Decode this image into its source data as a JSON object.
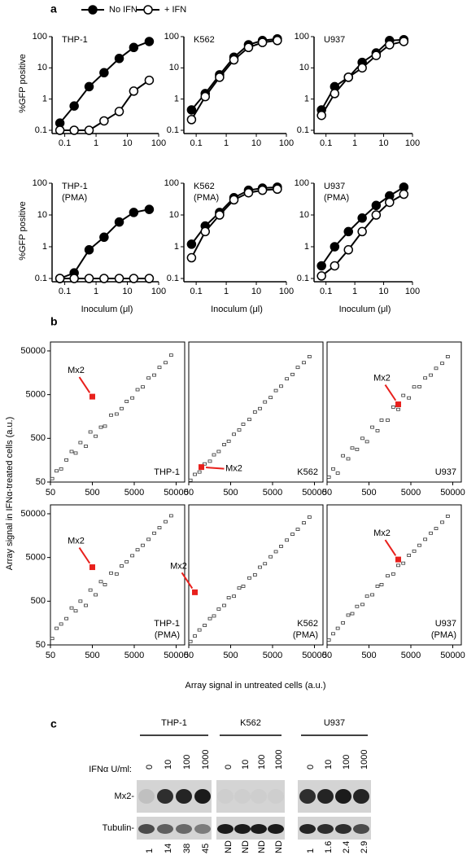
{
  "panel_labels": [
    "a",
    "b",
    "c"
  ],
  "chart_data": [
    {
      "type": "line",
      "title": [
        "THP-1"
      ],
      "ylabel": "%GFP positive",
      "log": true,
      "x": [
        0.07,
        0.2,
        0.6,
        1.8,
        5.5,
        16,
        50
      ],
      "xlim": [
        0.05,
        100
      ],
      "xticks": [
        0.1,
        1,
        10,
        100
      ],
      "ylim": [
        0.1,
        100
      ],
      "yticks": [
        0.1,
        1,
        10,
        100
      ],
      "series": [
        {
          "name": "No IFN",
          "color": "#000000",
          "values": [
            0.17,
            0.6,
            2.5,
            7,
            20,
            45,
            70
          ]
        },
        {
          "name": "+ IFN",
          "color": "#ffffff",
          "values": [
            0.1,
            0.1,
            0.1,
            0.2,
            0.4,
            1.8,
            4
          ]
        }
      ]
    },
    {
      "type": "line",
      "title": [
        "K562"
      ],
      "log": true,
      "x": [
        0.07,
        0.2,
        0.6,
        1.8,
        5.5,
        16,
        50
      ],
      "xlim": [
        0.05,
        100
      ],
      "xticks": [
        0.1,
        1,
        10,
        100
      ],
      "ylim": [
        0.1,
        100
      ],
      "yticks": [
        0.1,
        1,
        10,
        100
      ],
      "series": [
        {
          "color": "#000000",
          "values": [
            0.45,
            1.5,
            6,
            22,
            55,
            75,
            85
          ]
        },
        {
          "color": "#ffffff",
          "values": [
            0.22,
            1.2,
            5,
            18,
            45,
            65,
            75
          ]
        }
      ]
    },
    {
      "type": "line",
      "title": [
        "U937"
      ],
      "log": true,
      "x": [
        0.07,
        0.2,
        0.6,
        1.8,
        5.5,
        16,
        50
      ],
      "xlim": [
        0.05,
        100
      ],
      "xticks": [
        0.1,
        1,
        10,
        100
      ],
      "ylim": [
        0.1,
        100
      ],
      "yticks": [
        0.1,
        1,
        10,
        100
      ],
      "series": [
        {
          "color": "#000000",
          "values": [
            0.45,
            2.5,
            5,
            15,
            30,
            75,
            80
          ]
        },
        {
          "color": "#ffffff",
          "values": [
            0.3,
            1.5,
            5,
            10,
            25,
            55,
            70
          ]
        }
      ]
    },
    {
      "type": "line",
      "title": [
        "THP-1",
        "(PMA)"
      ],
      "ylabel": "%GFP positive",
      "xlabel": "Inoculum (μl)",
      "log": true,
      "x": [
        0.07,
        0.2,
        0.6,
        1.8,
        5.5,
        16,
        50
      ],
      "xlim": [
        0.05,
        100
      ],
      "xticks": [
        0.1,
        1,
        10,
        100
      ],
      "ylim": [
        0.1,
        100
      ],
      "yticks": [
        0.1,
        1,
        10,
        100
      ],
      "series": [
        {
          "color": "#000000",
          "values": [
            0.1,
            0.15,
            0.8,
            2,
            6,
            12,
            15
          ]
        },
        {
          "color": "#ffffff",
          "values": [
            0.1,
            0.1,
            0.1,
            0.1,
            0.1,
            0.1,
            0.1
          ]
        }
      ]
    },
    {
      "type": "line",
      "title": [
        "K562",
        "(PMA)"
      ],
      "xlabel": "Inoculum (μl)",
      "log": true,
      "x": [
        0.07,
        0.2,
        0.6,
        1.8,
        5.5,
        16,
        50
      ],
      "xlim": [
        0.05,
        100
      ],
      "xticks": [
        0.1,
        1,
        10,
        100
      ],
      "ylim": [
        0.1,
        100
      ],
      "yticks": [
        0.1,
        1,
        10,
        100
      ],
      "series": [
        {
          "color": "#000000",
          "values": [
            1.2,
            4.5,
            12,
            35,
            60,
            70,
            75
          ]
        },
        {
          "color": "#ffffff",
          "values": [
            0.45,
            3,
            10,
            30,
            50,
            60,
            65
          ]
        }
      ]
    },
    {
      "type": "line",
      "title": [
        "U937",
        "(PMA)"
      ],
      "xlabel": "Inoculum (μl)",
      "log": true,
      "x": [
        0.07,
        0.2,
        0.6,
        1.8,
        5.5,
        16,
        50
      ],
      "xlim": [
        0.05,
        100
      ],
      "xticks": [
        0.1,
        1,
        10,
        100
      ],
      "ylim": [
        0.1,
        100
      ],
      "yticks": [
        0.1,
        1,
        10,
        100
      ],
      "series": [
        {
          "color": "#000000",
          "values": [
            0.25,
            1,
            3,
            8,
            20,
            40,
            75
          ]
        },
        {
          "color": "#ffffff",
          "values": [
            0.12,
            0.25,
            0.8,
            3,
            10,
            25,
            45
          ]
        }
      ]
    },
    {
      "type": "scatter",
      "title": [
        "THP-1"
      ],
      "ylabel": "Array signal in IFNα-treated cells (a.u.)",
      "xlabel": "Array signal in untreated cells (a.u.)",
      "log": true,
      "color": "#333333",
      "x": [
        55,
        70,
        90,
        120,
        160,
        200,
        260,
        350,
        450,
        600,
        800,
        1000,
        1400,
        1900,
        2500,
        3300,
        4500,
        6000,
        8000,
        11000,
        15000,
        20000,
        28000,
        38000
      ],
      "values": [
        60,
        90,
        100,
        160,
        250,
        230,
        400,
        330,
        700,
        560,
        900,
        950,
        1700,
        1800,
        2400,
        3500,
        4200,
        6500,
        7500,
        12000,
        14000,
        21000,
        27000,
        40000
      ],
      "xlim": [
        50,
        80000
      ],
      "xticks": [
        50,
        500,
        5000,
        50000
      ],
      "ylim": [
        50,
        80000
      ],
      "yticks": [
        50,
        500,
        5000,
        50000
      ],
      "highlight": {
        "label": "Mx2",
        "x": 500,
        "y": 4500,
        "color": "#e8201c"
      }
    },
    {
      "type": "scatter",
      "title": [
        "K562"
      ],
      "log": true,
      "color": "#333333",
      "x": [
        55,
        70,
        90,
        120,
        160,
        200,
        260,
        350,
        450,
        600,
        800,
        1000,
        1400,
        1900,
        2500,
        3300,
        4500,
        6000,
        8000,
        11000,
        15000,
        20000,
        28000,
        38000
      ],
      "values": [
        55,
        75,
        85,
        130,
        150,
        210,
        250,
        360,
        430,
        620,
        780,
        1050,
        1350,
        2000,
        2400,
        3400,
        4300,
        6200,
        7800,
        11500,
        14500,
        21000,
        27000,
        37000
      ],
      "xlim": [
        50,
        80000
      ],
      "xticks": [
        50,
        500,
        5000,
        50000
      ],
      "ylim": [
        50,
        80000
      ],
      "highlight": {
        "label": "Mx2",
        "x": 100,
        "y": 110,
        "color": "#e8201c"
      }
    },
    {
      "type": "scatter",
      "title": [
        "U937"
      ],
      "log": true,
      "color": "#333333",
      "x": [
        55,
        70,
        90,
        120,
        160,
        200,
        260,
        350,
        450,
        600,
        800,
        1000,
        1400,
        1900,
        2500,
        3300,
        4500,
        6000,
        8000,
        11000,
        15000,
        20000,
        28000,
        38000
      ],
      "values": [
        65,
        100,
        80,
        200,
        170,
        300,
        280,
        500,
        420,
        900,
        750,
        1300,
        1300,
        2600,
        2300,
        4800,
        4200,
        7500,
        7600,
        12000,
        14000,
        20000,
        26000,
        37000
      ],
      "xlim": [
        50,
        80000
      ],
      "xticks": [
        50,
        500,
        5000,
        50000
      ],
      "ylim": [
        50,
        80000
      ],
      "highlight": {
        "label": "Mx2",
        "x": 2500,
        "y": 3000,
        "color": "#e8201c"
      }
    },
    {
      "type": "scatter",
      "title": [
        "THP-1",
        "(PMA)"
      ],
      "log": true,
      "color": "#333333",
      "x": [
        55,
        70,
        90,
        120,
        160,
        200,
        260,
        350,
        450,
        600,
        800,
        1000,
        1400,
        1900,
        2500,
        3300,
        4500,
        6000,
        8000,
        11000,
        15000,
        20000,
        28000,
        38000
      ],
      "values": [
        70,
        120,
        150,
        200,
        350,
        300,
        500,
        400,
        900,
        700,
        1400,
        1200,
        2200,
        2100,
        3200,
        4000,
        5500,
        7500,
        9500,
        13000,
        18000,
        24000,
        33000,
        45000
      ],
      "xlim": [
        50,
        80000
      ],
      "xticks": [
        50,
        500,
        5000,
        50000
      ],
      "ylim": [
        50,
        80000
      ],
      "yticks": [
        50,
        500,
        5000,
        50000
      ],
      "highlight": {
        "label": "Mx2",
        "x": 500,
        "y": 3000,
        "color": "#e8201c"
      }
    },
    {
      "type": "scatter",
      "title": [
        "K562",
        "(PMA)"
      ],
      "log": true,
      "color": "#333333",
      "x": [
        55,
        70,
        90,
        120,
        160,
        200,
        260,
        350,
        450,
        600,
        800,
        1000,
        1400,
        1900,
        2500,
        3300,
        4500,
        6000,
        8000,
        11000,
        15000,
        20000,
        28000,
        38000
      ],
      "values": [
        60,
        80,
        110,
        140,
        200,
        230,
        330,
        400,
        600,
        650,
        1000,
        1100,
        1700,
        2000,
        3000,
        3600,
        5200,
        6800,
        9000,
        12500,
        17000,
        22000,
        31000,
        42000
      ],
      "xlim": [
        50,
        80000
      ],
      "xticks": [
        50,
        500,
        5000,
        50000
      ],
      "ylim": [
        50,
        80000
      ],
      "highlight": {
        "label": "Mx2",
        "x": 70,
        "y": 800,
        "color": "#e8201c"
      }
    },
    {
      "type": "scatter",
      "title": [
        "U937",
        "(PMA)"
      ],
      "log": true,
      "color": "#333333",
      "x": [
        55,
        70,
        90,
        120,
        160,
        200,
        260,
        350,
        450,
        600,
        800,
        1000,
        1400,
        1900,
        2500,
        3300,
        4500,
        6000,
        8000,
        11000,
        15000,
        20000,
        28000,
        38000
      ],
      "values": [
        65,
        90,
        120,
        160,
        240,
        260,
        380,
        420,
        650,
        700,
        1100,
        1200,
        1900,
        2100,
        3300,
        3700,
        5600,
        7000,
        9500,
        13000,
        18000,
        23000,
        32000,
        44000
      ],
      "xlim": [
        50,
        80000
      ],
      "xticks": [
        50,
        500,
        5000,
        50000
      ],
      "ylim": [
        50,
        80000
      ],
      "highlight": {
        "label": "Mx2",
        "x": 2500,
        "y": 4500,
        "color": "#e8201c"
      }
    }
  ],
  "blot": {
    "groups": [
      "THP-1",
      "K562",
      "U937"
    ],
    "doses": [
      [
        0,
        10,
        100,
        1000
      ],
      [
        0,
        10,
        100,
        1000
      ],
      [
        0,
        10,
        100,
        1000
      ]
    ],
    "dose_label": "IFNα U/ml:",
    "rows": [
      "Mx2-",
      "Tubulin-"
    ],
    "quantification": [
      [
        1,
        14,
        38,
        45
      ],
      [
        "ND",
        "ND",
        "ND",
        "ND"
      ],
      [
        1,
        1.6,
        2.4,
        2.9
      ]
    ]
  }
}
